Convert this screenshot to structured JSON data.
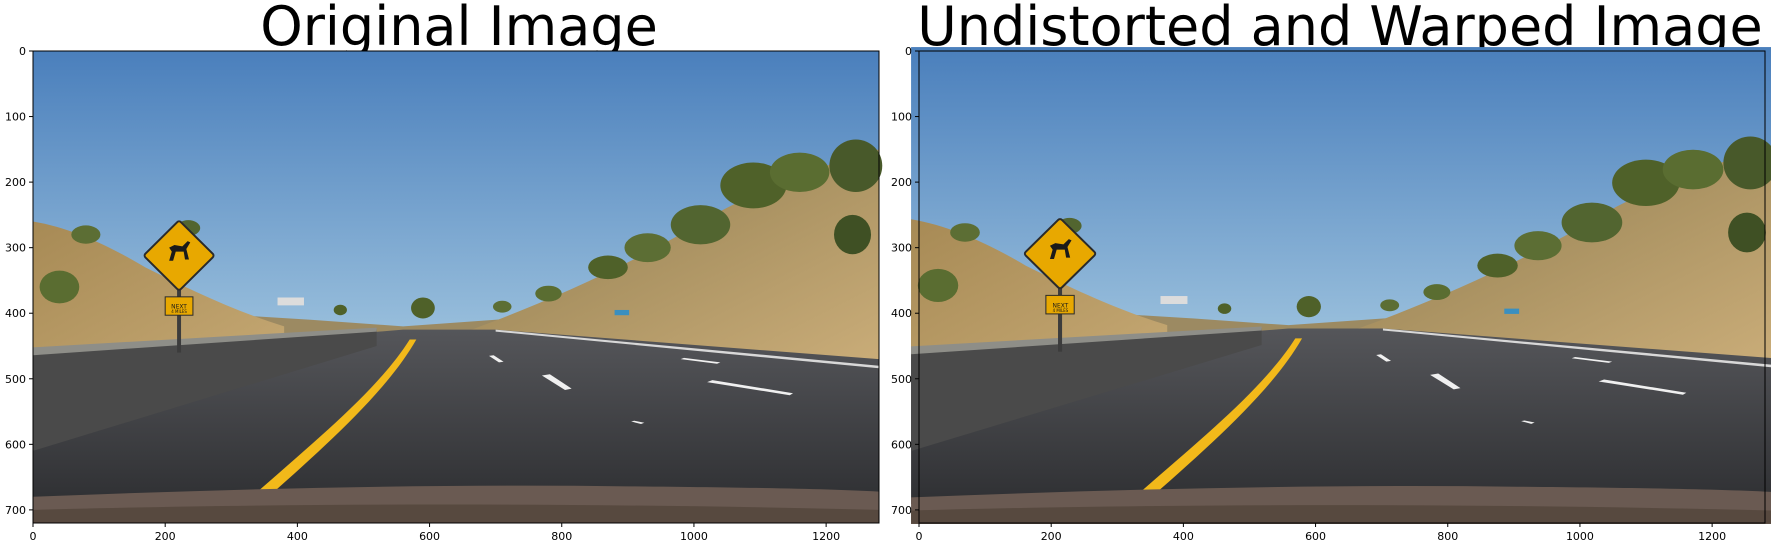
{
  "figure": {
    "panels": [
      {
        "title": "Original Image",
        "image_description": "Highway photo: blue sky, dry grassy hillside with trees, concrete median barrier, yellow diamond deer-crossing sign, curving yellow lane line and white lane markers",
        "xticks": [
          "0",
          "200",
          "400",
          "600",
          "800",
          "1000",
          "1200"
        ],
        "yticks": [
          "0",
          "100",
          "200",
          "300",
          "400",
          "500",
          "600",
          "700"
        ]
      },
      {
        "title": "Undistorted and Warped Image",
        "image_description": "Same highway photo after camera undistortion",
        "xticks": [
          "0",
          "200",
          "400",
          "600",
          "800",
          "1000",
          "1200"
        ],
        "yticks": [
          "0",
          "100",
          "200",
          "300",
          "400",
          "500",
          "600",
          "700"
        ]
      }
    ],
    "sign_text": [
      "NEXT",
      "4 MILES"
    ]
  },
  "colors": {
    "sky_top": "#4a7fbc",
    "sky_bottom": "#9ec3de",
    "hill": "#b89a64",
    "tree": "#556b2f",
    "road": "#3a3a3e",
    "barrier": "#4a4a4a",
    "lane_yellow": "#f2b91a",
    "lane_white": "#f0f0f0",
    "sign": "#e8a800",
    "hood": "#6a5a52"
  }
}
